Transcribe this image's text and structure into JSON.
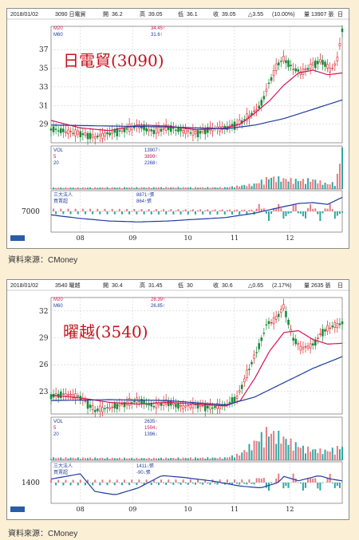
{
  "source": "資料來源：CMoney",
  "chart_data": [
    {
      "type": "candlestick",
      "title": "日電貿(3090)",
      "header": {
        "date": "2018/01/02",
        "stock": "3090 日電貿",
        "open_label": "開",
        "open": "36.2",
        "high_label": "高",
        "high": "39.05",
        "low_label": "低",
        "low": "36.1",
        "close_label": "收",
        "close": "39.05",
        "change": "△3.55",
        "change_pct": "(10.00%)",
        "vol_label": "量",
        "vol": "13907",
        "vol_unit": "張",
        "period": "日"
      },
      "ma_legend": [
        {
          "name": "M20",
          "value": "34.45↑",
          "color": "#d4145a"
        },
        {
          "name": "M60",
          "value": "31.6↑",
          "color": "#1f3b9e"
        }
      ],
      "vol_legend": [
        {
          "name": "VOL",
          "value": "13907↑"
        },
        {
          "name": "5",
          "value": "3899↑"
        },
        {
          "name": "20",
          "value": "2268↑"
        }
      ],
      "inst_legend": [
        {
          "name": "三大法人",
          "value": "8871↑張"
        },
        {
          "name": "買賣超",
          "value": "864↑張"
        }
      ],
      "price_ticks": [
        37,
        35,
        33,
        31,
        29
      ],
      "price_range": [
        27,
        39.5
      ],
      "vol_max": 14000,
      "inst_tick": 7000,
      "x_ticks": [
        "08",
        "09",
        "10",
        "11",
        "12"
      ],
      "x_positions": [
        0.1,
        0.28,
        0.47,
        0.63,
        0.82
      ],
      "ma20": [
        [
          0,
          29.4
        ],
        [
          0.1,
          28.6
        ],
        [
          0.2,
          28.3
        ],
        [
          0.3,
          28.9
        ],
        [
          0.4,
          28.8
        ],
        [
          0.5,
          28.4
        ],
        [
          0.6,
          28.6
        ],
        [
          0.65,
          29
        ],
        [
          0.7,
          30.2
        ],
        [
          0.75,
          31.5
        ],
        [
          0.8,
          33.2
        ],
        [
          0.85,
          34.5
        ],
        [
          0.9,
          34.8
        ],
        [
          0.95,
          34.3
        ],
        [
          1,
          34.5
        ]
      ],
      "ma60": [
        [
          0,
          28.9
        ],
        [
          0.2,
          28.8
        ],
        [
          0.4,
          28.7
        ],
        [
          0.6,
          28.5
        ],
        [
          0.7,
          28.9
        ],
        [
          0.8,
          29.6
        ],
        [
          0.9,
          30.6
        ],
        [
          1,
          31.6
        ]
      ],
      "price_path": [
        [
          0,
          28.5
        ],
        [
          0.05,
          28.2
        ],
        [
          0.1,
          28
        ],
        [
          0.15,
          27.6
        ],
        [
          0.2,
          28
        ],
        [
          0.25,
          28.4
        ],
        [
          0.3,
          28.8
        ],
        [
          0.35,
          28.2
        ],
        [
          0.4,
          28.6
        ],
        [
          0.45,
          28.3
        ],
        [
          0.5,
          28
        ],
        [
          0.55,
          28.5
        ],
        [
          0.6,
          28.6
        ],
        [
          0.64,
          29
        ],
        [
          0.68,
          29.8
        ],
        [
          0.72,
          31
        ],
        [
          0.75,
          33.5
        ],
        [
          0.78,
          35.5
        ],
        [
          0.8,
          36
        ],
        [
          0.83,
          35
        ],
        [
          0.86,
          34.5
        ],
        [
          0.9,
          35.4
        ],
        [
          0.93,
          35.8
        ],
        [
          0.96,
          34.8
        ],
        [
          0.98,
          35.5
        ],
        [
          1,
          39
        ]
      ],
      "vol_path": [
        [
          0,
          400
        ],
        [
          0.3,
          500
        ],
        [
          0.6,
          500
        ],
        [
          0.7,
          1500
        ],
        [
          0.75,
          3500
        ],
        [
          0.8,
          3000
        ],
        [
          0.85,
          2600
        ],
        [
          0.9,
          2800
        ],
        [
          0.95,
          1500
        ],
        [
          0.98,
          2000
        ],
        [
          1,
          13907
        ]
      ],
      "inst_path": [
        [
          0,
          -0.2
        ],
        [
          0.1,
          -0.4
        ],
        [
          0.2,
          -0.55
        ],
        [
          0.3,
          -0.6
        ],
        [
          0.4,
          -0.55
        ],
        [
          0.5,
          -0.45
        ],
        [
          0.6,
          -0.35
        ],
        [
          0.7,
          -0.1
        ],
        [
          0.78,
          0.2
        ],
        [
          0.85,
          0.45
        ],
        [
          0.9,
          0.5
        ],
        [
          0.95,
          0.4
        ],
        [
          1,
          0.8
        ]
      ]
    },
    {
      "type": "candlestick",
      "title": "曜越(3540)",
      "header": {
        "date": "2018/01/02",
        "stock": "3540 曜越",
        "open_label": "開",
        "open": "30.4",
        "high_label": "高",
        "high": "31.45",
        "low_label": "低",
        "low": "30",
        "close_label": "收",
        "close": "30.6",
        "change": "△0.65",
        "change_pct": "(2.17%)",
        "vol_label": "量",
        "vol": "2635",
        "vol_unit": "張",
        "period": "日"
      },
      "ma_legend": [
        {
          "name": "M20",
          "value": "28.39↑",
          "color": "#d4145a"
        },
        {
          "name": "M60",
          "value": "26.85↑",
          "color": "#1f3b9e"
        }
      ],
      "vol_legend": [
        {
          "name": "VOL",
          "value": "2635↑"
        },
        {
          "name": "5",
          "value": "1594↓"
        },
        {
          "name": "20",
          "value": "1396↓"
        }
      ],
      "inst_legend": [
        {
          "name": "三大法人",
          "value": "1411↓張"
        },
        {
          "name": "買賣超",
          "value": "-90↓張"
        }
      ],
      "price_ticks": [
        32,
        29,
        26,
        23
      ],
      "price_range": [
        20.5,
        33.5
      ],
      "vol_max": 9000,
      "inst_tick": 1400,
      "x_ticks": [
        "08",
        "09",
        "10",
        "11",
        "12"
      ],
      "x_positions": [
        0.1,
        0.28,
        0.47,
        0.63,
        0.82
      ],
      "ma20": [
        [
          0,
          22.6
        ],
        [
          0.1,
          22.3
        ],
        [
          0.2,
          21.8
        ],
        [
          0.3,
          21.6
        ],
        [
          0.4,
          21.8
        ],
        [
          0.5,
          21.6
        ],
        [
          0.6,
          21.4
        ],
        [
          0.65,
          22
        ],
        [
          0.7,
          24.5
        ],
        [
          0.75,
          27.5
        ],
        [
          0.8,
          29.6
        ],
        [
          0.85,
          29.8
        ],
        [
          0.9,
          28.8
        ],
        [
          0.95,
          28.3
        ],
        [
          1,
          28.4
        ]
      ],
      "ma60": [
        [
          0,
          22
        ],
        [
          0.2,
          22.1
        ],
        [
          0.4,
          22
        ],
        [
          0.6,
          21.5
        ],
        [
          0.7,
          22.4
        ],
        [
          0.8,
          24
        ],
        [
          0.9,
          25.6
        ],
        [
          1,
          26.9
        ]
      ],
      "price_path": [
        [
          0,
          22.5
        ],
        [
          0.05,
          22.7
        ],
        [
          0.1,
          22.4
        ],
        [
          0.15,
          20.9
        ],
        [
          0.2,
          21.2
        ],
        [
          0.25,
          21.6
        ],
        [
          0.3,
          22
        ],
        [
          0.35,
          21.4
        ],
        [
          0.4,
          21.8
        ],
        [
          0.45,
          21.3
        ],
        [
          0.5,
          21.5
        ],
        [
          0.55,
          21.2
        ],
        [
          0.6,
          21.5
        ],
        [
          0.64,
          22.4
        ],
        [
          0.68,
          25.5
        ],
        [
          0.72,
          28.5
        ],
        [
          0.74,
          30.5
        ],
        [
          0.77,
          31
        ],
        [
          0.8,
          32.5
        ],
        [
          0.83,
          29
        ],
        [
          0.86,
          27.8
        ],
        [
          0.9,
          28.2
        ],
        [
          0.93,
          29.6
        ],
        [
          0.96,
          30.2
        ],
        [
          1,
          30.6
        ]
      ],
      "vol_path": [
        [
          0,
          500
        ],
        [
          0.3,
          400
        ],
        [
          0.6,
          500
        ],
        [
          0.65,
          1200
        ],
        [
          0.7,
          3500
        ],
        [
          0.74,
          5500
        ],
        [
          0.78,
          4800
        ],
        [
          0.82,
          3600
        ],
        [
          0.86,
          2500
        ],
        [
          0.9,
          2000
        ],
        [
          0.95,
          1800
        ],
        [
          1,
          2635
        ]
      ],
      "inst_path": [
        [
          0,
          0.2
        ],
        [
          0.1,
          0.5
        ],
        [
          0.15,
          -0.5
        ],
        [
          0.22,
          -0.7
        ],
        [
          0.3,
          -0.3
        ],
        [
          0.38,
          0.4
        ],
        [
          0.45,
          0.3
        ],
        [
          0.55,
          0.1
        ],
        [
          0.65,
          -0.2
        ],
        [
          0.72,
          -0.3
        ],
        [
          0.78,
          0.0
        ],
        [
          0.8,
          0.35
        ],
        [
          0.85,
          0.1
        ],
        [
          0.92,
          0.4
        ],
        [
          0.96,
          0.2
        ],
        [
          1,
          0.1
        ]
      ]
    }
  ]
}
